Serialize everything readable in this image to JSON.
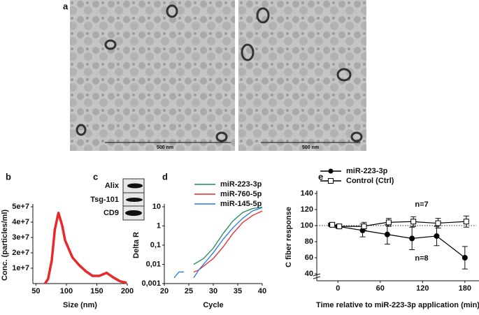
{
  "panel_labels": [
    "a",
    "b",
    "c",
    "d",
    "e"
  ],
  "images": [
    {
      "scale_bar": "500 nm"
    },
    {
      "scale_bar": "500 nm"
    }
  ],
  "blot": {
    "labels": [
      "Alix",
      "Tsg-101",
      "CD9"
    ]
  },
  "chart_data": [
    {
      "type": "line",
      "x_label": "Size (nm)",
      "y_label": "Conc. (particles/ml)",
      "x": [
        65,
        70,
        76,
        81,
        87,
        93,
        98,
        110,
        121,
        132,
        143,
        154,
        166,
        177,
        188,
        199
      ],
      "series": [
        {
          "color": "#e8282a",
          "values": [
            0,
            3000000,
            15000000,
            35000000,
            46000000,
            38000000,
            28000000,
            17000000,
            12000000,
            8000000,
            5000000,
            5000000,
            7000000,
            4000000,
            1500000,
            500000
          ]
        }
      ],
      "xlim": [
        45,
        200
      ],
      "xticks": [
        50,
        100,
        150,
        200
      ],
      "ylim": [
        0,
        50000000
      ],
      "yticks": [
        {
          "value": 10000000,
          "label": "1e+7"
        },
        {
          "value": 20000000,
          "label": "2e+7"
        },
        {
          "value": 30000000,
          "label": "3e+7"
        },
        {
          "value": 40000000,
          "label": "4e+7"
        },
        {
          "value": 50000000,
          "label": "5e+7"
        }
      ]
    },
    {
      "type": "line",
      "x_label": "Cycle",
      "y_label": "Delta R",
      "log_y": true,
      "legend": "top",
      "x": [
        22,
        23,
        24,
        25,
        26,
        27,
        28,
        30,
        32,
        34,
        36,
        38,
        40
      ],
      "series": [
        {
          "name": "miR-223-3p",
          "color": "#1f8a5a",
          "values": [
            null,
            null,
            null,
            null,
            0.01,
            0.014,
            0.02,
            0.07,
            0.4,
            1.8,
            5,
            8,
            9.5
          ]
        },
        {
          "name": "miR-760-5p",
          "color": "#e8282a",
          "values": [
            null,
            null,
            null,
            null,
            0.004,
            0.005,
            0.008,
            0.02,
            0.08,
            0.4,
            1.5,
            3.5,
            6
          ]
        },
        {
          "name": "miR-145-5p",
          "color": "#2878e6",
          "values": [
            0.002,
            0.004,
            0.004,
            null,
            0.002,
            0.005,
            0.01,
            0.04,
            0.2,
            0.8,
            2.5,
            6,
            9
          ]
        }
      ],
      "xlim": [
        20,
        40
      ],
      "xticks": [
        20,
        25,
        30,
        35,
        40
      ],
      "ylim": [
        0.001,
        10
      ],
      "yticks": [
        {
          "value": 0.001,
          "label": "0,001"
        },
        {
          "value": 0.01,
          "label": "0,01"
        },
        {
          "value": 0.1,
          "label": "0,1"
        },
        1,
        10
      ]
    },
    {
      "type": "line",
      "x_label": "Time relative to miR-223-3p application (min)",
      "y_label": "C fiber response",
      "legend": "top-left",
      "x": [
        -10,
        0,
        35,
        70,
        105,
        140,
        180
      ],
      "series": [
        {
          "name": "miR-223-3p",
          "color": "#000000",
          "marker": "circle-filled",
          "values": [
            101,
            99,
            94,
            89,
            84,
            87,
            60
          ],
          "errors": [
            2,
            2,
            8,
            12,
            14,
            12,
            14
          ]
        },
        {
          "name": "Control (Ctrl)",
          "color": "#000000",
          "marker": "square-open",
          "values": [
            101,
            99,
            99,
            104,
            105,
            103,
            105
          ],
          "errors": [
            2,
            2,
            5,
            5,
            6,
            6,
            7
          ]
        }
      ],
      "hline": 100,
      "annotations": [
        "n=7",
        "n=8"
      ],
      "xlim": [
        -30,
        200
      ],
      "xticks": [
        0,
        60,
        120,
        180
      ],
      "ylim": [
        40,
        140
      ],
      "yticks": [
        40,
        60,
        80,
        100,
        120,
        140
      ]
    }
  ]
}
